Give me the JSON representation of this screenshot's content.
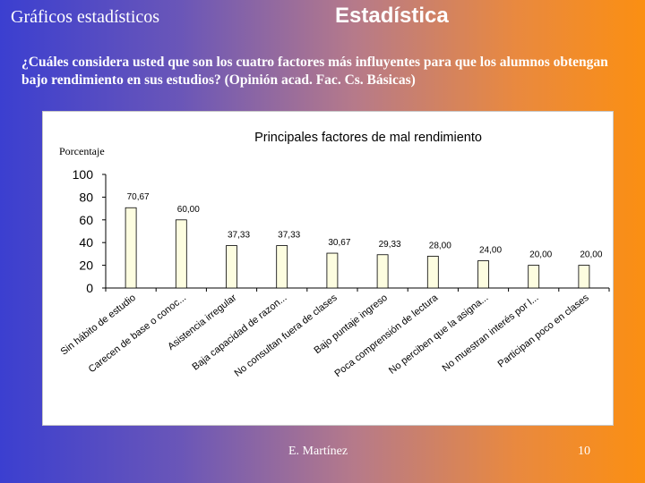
{
  "slide": {
    "subtitle": "Gráficos estadísticos",
    "title": "Estadística",
    "question": "¿Cuáles considera usted que son los cuatro factores más influyentes para que los alumnos obtengan bajo rendimiento en sus estudios? (Opinión acad. Fac. Cs. Básicas)",
    "author": "E. Martínez",
    "page_number": "10"
  },
  "chart_data": {
    "type": "bar",
    "title": "Principales factores de mal rendimiento",
    "ylabel": "Porcentaje",
    "xlabel": "",
    "ylim": [
      0,
      100
    ],
    "yticks": [
      "0",
      "20",
      "40",
      "60",
      "80",
      "100"
    ],
    "grid": false,
    "legend": "none",
    "categories": [
      "Sin hábito de estudio",
      "Carecen de base o conoc...",
      "Asistencia irregular",
      "Baja capacidad de razon...",
      "No consultan fuera de clases",
      "Bajo puntaje ingreso",
      "Poca comprensión de lectura",
      "No perciben que la asigna...",
      "No muestran interés por l...",
      "Participan poco en clases"
    ],
    "values": [
      70.67,
      60.0,
      37.33,
      37.33,
      30.67,
      29.33,
      28.0,
      24.0,
      20.0,
      20.0
    ],
    "data_labels": [
      "70,67",
      "60,00",
      "37,33",
      "37,33",
      "30,67",
      "29,33",
      "28,00",
      "24,00",
      "20,00",
      "20,00"
    ],
    "bar_color": "#fdfde0",
    "bar_stroke": "#000000"
  }
}
